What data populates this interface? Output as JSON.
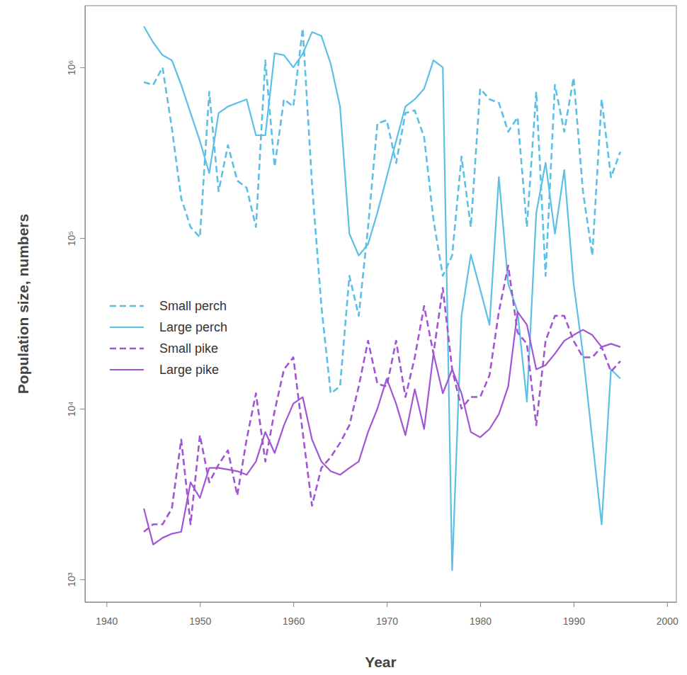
{
  "chart_data": {
    "type": "line",
    "x_label": "Year",
    "y_label": "Population size, numbers",
    "log": "y",
    "legend": "left",
    "xlim": [
      1937.7,
      2001
    ],
    "ylim": [
      736,
      2300000
    ],
    "xticks": [
      1940,
      1950,
      1960,
      1970,
      1980,
      1990,
      2000
    ],
    "yticks": [
      {
        "value": 1000,
        "label": "10³"
      },
      {
        "value": 10000,
        "label": "10⁴"
      },
      {
        "value": 100000,
        "label": "10⁵"
      },
      {
        "value": 1000000,
        "label": "10⁶"
      }
    ],
    "x": [
      1944,
      1945,
      1946,
      1947,
      1948,
      1949,
      1950,
      1951,
      1952,
      1953,
      1954,
      1955,
      1956,
      1957,
      1958,
      1959,
      1960,
      1961,
      1962,
      1963,
      1964,
      1965,
      1966,
      1967,
      1968,
      1969,
      1970,
      1971,
      1972,
      1973,
      1974,
      1975,
      1976,
      1977,
      1978,
      1979,
      1980,
      1981,
      1982,
      1983,
      1984,
      1985,
      1986,
      1987,
      1988,
      1989,
      1990,
      1991,
      1992,
      1993,
      1994,
      1995
    ],
    "series": [
      {
        "name": "Small perch",
        "color": "#5bbfe6",
        "line_style": "dashed",
        "values": [
          820000,
          790000,
          1000000,
          440000,
          171000,
          116000,
          101000,
          720000,
          188000,
          350000,
          217000,
          197000,
          116000,
          1100000,
          262000,
          650000,
          590000,
          1690000,
          207000,
          40000,
          12300,
          13500,
          60000,
          35000,
          116000,
          470000,
          490000,
          275000,
          540000,
          560000,
          390000,
          128000,
          60000,
          79000,
          300000,
          116000,
          750000,
          650000,
          620000,
          420000,
          510000,
          116000,
          720000,
          60000,
          790000,
          420000,
          870000,
          188000,
          79000,
          650000,
          227000,
          320000
        ]
      },
      {
        "name": "Large perch",
        "color": "#5bbfe6",
        "line_style": "solid",
        "values": [
          1740000,
          1400000,
          1180000,
          1100000,
          790000,
          540000,
          370000,
          240000,
          540000,
          590000,
          620000,
          650000,
          400000,
          400000,
          1210000,
          1180000,
          1000000,
          1200000,
          1610000,
          1530000,
          1050000,
          590000,
          106000,
          79000,
          92000,
          141000,
          228000,
          370000,
          590000,
          650000,
          750000,
          1100000,
          1000000,
          1130,
          35000,
          80000,
          50000,
          31000,
          228000,
          54000,
          37000,
          11000,
          140000,
          276000,
          106000,
          250000,
          54000,
          21000,
          6600,
          2100,
          17000,
          15000
        ]
      },
      {
        "name": "Small pike",
        "color": "#a155d4",
        "line_style": "dashed",
        "values": [
          1900,
          2100,
          2100,
          2600,
          6600,
          2100,
          7000,
          3700,
          4700,
          5700,
          3100,
          6600,
          12300,
          4900,
          9700,
          17000,
          20000,
          7300,
          2700,
          4500,
          5200,
          6300,
          8000,
          13500,
          25000,
          14000,
          13500,
          25000,
          11700,
          20000,
          40000,
          21000,
          51000,
          17000,
          10000,
          11700,
          11700,
          15700,
          37000,
          69000,
          28000,
          24000,
          8000,
          25000,
          35000,
          35000,
          25000,
          20000,
          20000,
          23000,
          16500,
          19000
        ]
      },
      {
        "name": "Large pike",
        "color": "#a155d4",
        "line_style": "solid",
        "values": [
          2600,
          1600,
          1750,
          1850,
          1900,
          3700,
          3000,
          4500,
          4500,
          4400,
          4300,
          4100,
          4900,
          7300,
          5500,
          8000,
          10700,
          11700,
          6600,
          4900,
          4300,
          4100,
          4500,
          4900,
          7300,
          10000,
          15000,
          10700,
          7000,
          13000,
          7600,
          21000,
          12300,
          17000,
          12300,
          7300,
          6800,
          7600,
          9300,
          13500,
          37000,
          31000,
          17000,
          18000,
          21000,
          25000,
          27000,
          29000,
          27000,
          23000,
          24000,
          23000
        ]
      }
    ]
  }
}
